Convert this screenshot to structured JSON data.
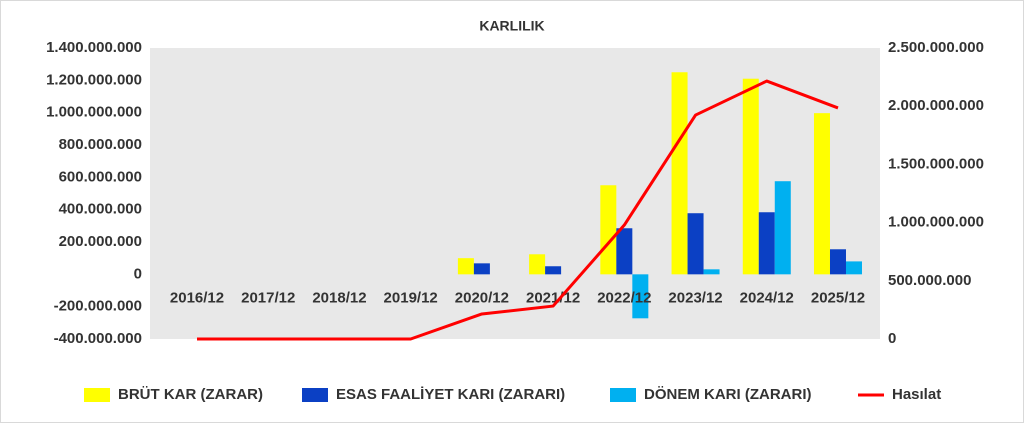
{
  "chart_data": {
    "type": "bar",
    "title": "KARLILIK",
    "categories": [
      "2016/12",
      "2017/12",
      "2018/12",
      "2019/12",
      "2020/12",
      "2021/12",
      "2022/12",
      "2023/12",
      "2024/12",
      "2025/12"
    ],
    "series": [
      {
        "name": "BRÜT KAR (ZARAR)",
        "color": "#ffff00",
        "values": [
          0,
          0,
          0,
          0,
          100000000,
          124000000,
          551000000,
          1250000000,
          1210000000,
          997000000
        ]
      },
      {
        "name": "ESAS FAALİYET KARI (ZARARI)",
        "color": "#0b40c4",
        "values": [
          0,
          0,
          0,
          0,
          68000000,
          50000000,
          285000000,
          378000000,
          384000000,
          155000000
        ]
      },
      {
        "name": "DÖNEM KARI (ZARARI)",
        "color": "#00b0f0",
        "values": [
          0,
          0,
          0,
          0,
          0,
          0,
          -272000000,
          31000000,
          576000000,
          80000000
        ]
      },
      {
        "name": "Hasılat",
        "color": "#ff0000",
        "type": "line",
        "axis": "y2",
        "values": [
          0,
          0,
          0,
          0,
          215000000,
          283000000,
          979000000,
          1924000000,
          2216000000,
          1985000000
        ]
      }
    ],
    "ylim": [
      -400000000,
      1400000000
    ],
    "yticks": [
      {
        "value": -400000000,
        "label": "-400.000.000"
      },
      {
        "value": -200000000,
        "label": "-200.000.000"
      },
      0,
      {
        "value": 200000000,
        "label": "200.000.000"
      },
      {
        "value": 400000000,
        "label": "400.000.000"
      },
      {
        "value": 600000000,
        "label": "600.000.000"
      },
      {
        "value": 800000000,
        "label": "800.000.000"
      },
      {
        "value": 1000000000,
        "label": "1.000.000.000"
      },
      {
        "value": 1200000000,
        "label": "1.200.000.000"
      },
      {
        "value": 1400000000,
        "label": "1.400.000.000"
      }
    ],
    "y2lim": [
      0,
      2500000000
    ],
    "y2ticks": [
      0,
      {
        "value": 500000000,
        "label": "500.000.000"
      },
      {
        "value": 1000000000,
        "label": "1.000.000.000"
      },
      {
        "value": 1500000000,
        "label": "1.500.000.000"
      },
      {
        "value": 2000000000,
        "label": "2.000.000.000"
      },
      {
        "value": 2500000000,
        "label": "2.500.000.000"
      }
    ],
    "legend": "bottom"
  }
}
